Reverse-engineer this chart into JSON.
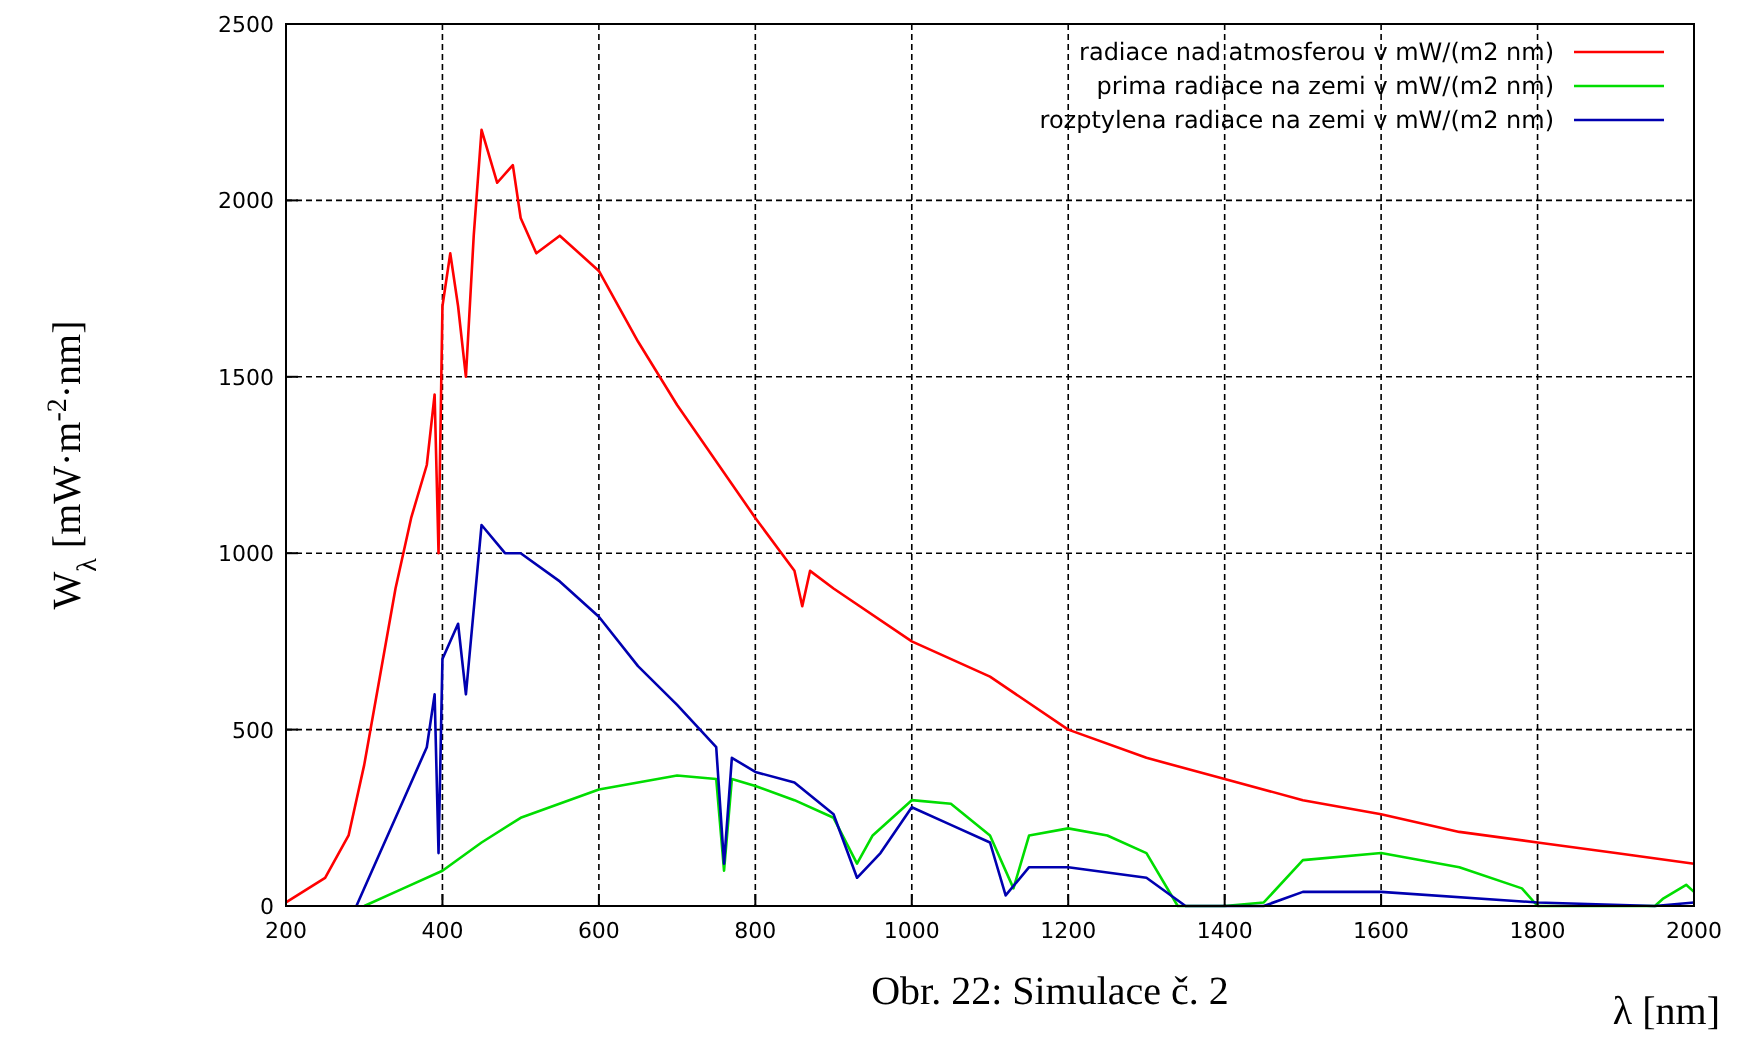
{
  "chart_data": {
    "type": "line",
    "ylabel": "W$_{λ}$ [mW·m$^{-2}$·nm]",
    "xlabel": "λ [nm]",
    "annotations": [
      "Obr. 22: Simulace č. 2"
    ],
    "xlim": [
      200,
      2000
    ],
    "xticks": [
      200,
      400,
      600,
      800,
      1000,
      1200,
      1400,
      1600,
      1800,
      2000
    ],
    "ylim": [
      0,
      2500
    ],
    "yticks": [
      0,
      500,
      1000,
      1500,
      2000,
      2500
    ],
    "grid": true,
    "legend": "top right",
    "line_style": "solid",
    "series": [
      {
        "name": "radiace nad atmosferou v mW/(m2 nm)",
        "color": "#ff0000",
        "x": [
          200,
          250,
          280,
          300,
          320,
          340,
          360,
          380,
          390,
          395,
          400,
          410,
          420,
          430,
          440,
          450,
          470,
          490,
          500,
          520,
          550,
          600,
          650,
          700,
          800,
          850,
          860,
          870,
          900,
          1000,
          1100,
          1200,
          1300,
          1400,
          1500,
          1600,
          1700,
          1800,
          1900,
          2000
        ],
        "values": [
          10,
          80,
          200,
          400,
          650,
          900,
          1100,
          1250,
          1450,
          1000,
          1700,
          1850,
          1700,
          1500,
          1900,
          2200,
          2050,
          2100,
          1950,
          1850,
          1900,
          1800,
          1600,
          1420,
          1100,
          950,
          850,
          950,
          900,
          750,
          650,
          500,
          420,
          360,
          300,
          260,
          210,
          180,
          150,
          120
        ]
      },
      {
        "name": "prima radiace na zemi v mW/(m2 nm)",
        "color": "#00dd00",
        "x": [
          300,
          350,
          400,
          450,
          500,
          600,
          700,
          750,
          760,
          770,
          800,
          850,
          900,
          930,
          950,
          1000,
          1050,
          1100,
          1130,
          1150,
          1200,
          1250,
          1300,
          1340,
          1400,
          1450,
          1500,
          1600,
          1700,
          1780,
          1800,
          1950,
          1960,
          1990,
          2000
        ],
        "values": [
          0,
          50,
          100,
          180,
          250,
          330,
          370,
          360,
          100,
          360,
          340,
          300,
          250,
          120,
          200,
          300,
          290,
          200,
          50,
          200,
          220,
          200,
          150,
          0,
          0,
          10,
          130,
          150,
          110,
          50,
          0,
          0,
          20,
          60,
          40
        ]
      },
      {
        "name": "rozptylena radiace na zemi v mW/(m2 nm)",
        "color": "#0000b0",
        "x": [
          290,
          320,
          350,
          380,
          390,
          395,
          400,
          420,
          430,
          450,
          480,
          500,
          550,
          600,
          650,
          700,
          750,
          760,
          770,
          800,
          850,
          900,
          930,
          960,
          1000,
          1050,
          1100,
          1120,
          1150,
          1200,
          1300,
          1350,
          1450,
          1500,
          1600,
          1800,
          1950,
          2000
        ],
        "values": [
          0,
          150,
          300,
          450,
          600,
          150,
          700,
          800,
          600,
          1080,
          1000,
          1000,
          920,
          820,
          680,
          570,
          450,
          120,
          420,
          380,
          350,
          260,
          80,
          150,
          280,
          230,
          180,
          30,
          110,
          110,
          80,
          0,
          0,
          40,
          40,
          10,
          0,
          10
        ]
      }
    ]
  }
}
